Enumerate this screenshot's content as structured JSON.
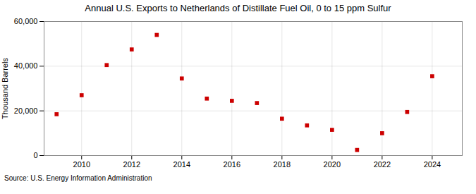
{
  "chart_data": {
    "type": "scatter",
    "title": "Annual U.S. Exports to Netherlands of Distillate Fuel Oil, 0 to 15 ppm Sulfur",
    "ylabel": "Thousand Barrels",
    "source": "Source: U.S. Energy Information Administration",
    "x": [
      2009,
      2010,
      2011,
      2012,
      2013,
      2014,
      2015,
      2016,
      2017,
      2018,
      2019,
      2020,
      2021,
      2022,
      2023,
      2024
    ],
    "values": [
      18500,
      27000,
      40500,
      47500,
      54000,
      34500,
      25500,
      24500,
      23500,
      16500,
      13500,
      11500,
      2500,
      10000,
      19500,
      35500
    ],
    "color": "#cc0000",
    "marker": "square",
    "xlim": [
      2008.5,
      2025.2
    ],
    "xticks": [
      2010,
      2012,
      2014,
      2016,
      2018,
      2020,
      2022,
      2024
    ],
    "ylim": [
      0,
      60000
    ],
    "yticks": [
      0,
      {
        "value": 20000,
        "label": "20,000"
      },
      {
        "value": 40000,
        "label": "40,000"
      },
      {
        "value": 60000,
        "label": "60,000"
      }
    ],
    "grid": true
  }
}
